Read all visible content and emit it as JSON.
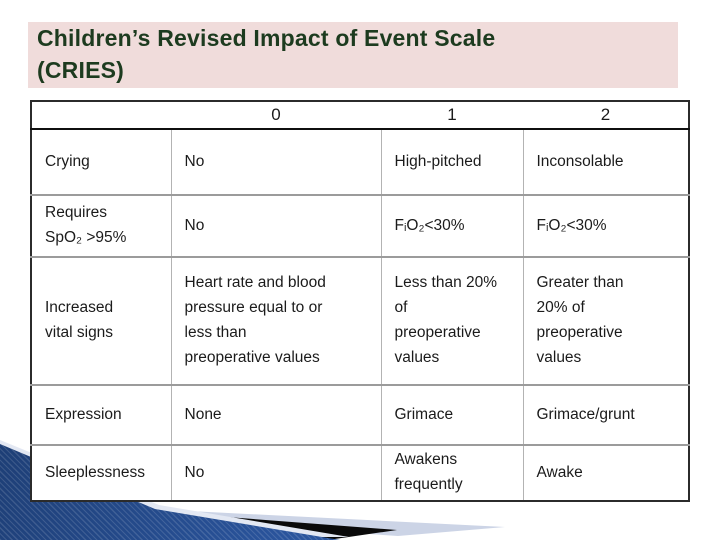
{
  "slide": {
    "title_line1": "Children’s Revised Impact of Event Scale",
    "title_line2": "(CRIES)"
  },
  "table": {
    "headers": [
      "",
      "0",
      "1",
      "2"
    ],
    "rows": [
      {
        "label": "Crying",
        "cells": [
          "No",
          "High-pitched",
          "Inconsolable"
        ]
      },
      {
        "label": "Requires\nSpO₂ >95%",
        "cells": [
          "No",
          "FᵢO₂<30%",
          "FᵢO₂<30%"
        ]
      },
      {
        "label": "Increased\nvital signs",
        "cells": [
          "Heart rate and blood\npressure equal to or\nless than\npreoperative values",
          "Less than 20%\nof\npreoperative\nvalues",
          "Greater than\n20% of\npreoperative\nvalues"
        ]
      },
      {
        "label": "Expression",
        "cells": [
          "None",
          "Grimace",
          "Grimace/grunt"
        ]
      },
      {
        "label": "Sleeplessness",
        "cells": [
          "No",
          "Awakens\nfrequently",
          "Awake"
        ]
      }
    ]
  },
  "colors": {
    "title_text": "#1d3b1f",
    "title_bg": "#f0dcdb",
    "text": "#1b1b1b",
    "table_border_dark": "#2b2b2b",
    "table_border_gray": "#9b9b9b",
    "swoosh_blue_dark": "#16315e",
    "swoosh_blue_mid": "#2a549c",
    "swoosh_blue_light": "#4170b5",
    "swoosh_black": "#0a0a0a",
    "swoosh_light_band": "#ccd4e6",
    "swoosh_edge": "#e3e8f3"
  }
}
